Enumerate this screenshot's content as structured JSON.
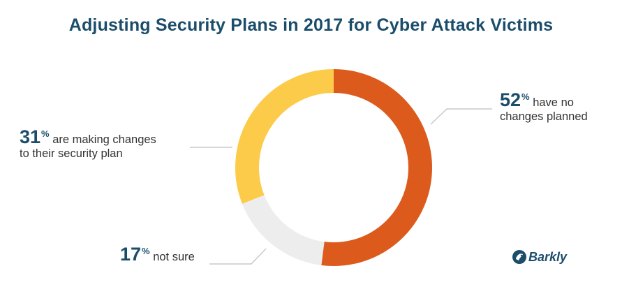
{
  "title": "Adjusting Security Plans in 2017 for Cyber Attack Victims",
  "brand": "Barkly",
  "colors": {
    "title": "#1b4d6b",
    "no_changes": "#dc5a1b",
    "not_sure": "#ededed",
    "making_changes": "#fdcb4a",
    "leader_line": "#bdbdbd"
  },
  "chart_data": {
    "type": "pie",
    "variant": "donut",
    "title": "Adjusting Security Plans in 2017 for Cyber Attack Victims",
    "slices": [
      {
        "label": "have no changes planned",
        "value": 52,
        "percent_text": "52",
        "color": "#dc5a1b"
      },
      {
        "label": "not sure",
        "value": 17,
        "percent_text": "17",
        "color": "#ededed"
      },
      {
        "label": "are making changes to their security plan",
        "value": 31,
        "percent_text": "31",
        "color": "#fdcb4a"
      }
    ],
    "legend": "none",
    "labels": {
      "no_changes": {
        "pct": "52",
        "sign": "%",
        "line1": "have no",
        "line2": "changes planned"
      },
      "making_changes": {
        "pct": "31",
        "sign": "%",
        "line1": "are making changes",
        "line2": "to their security plan"
      },
      "not_sure": {
        "pct": "17",
        "sign": "%",
        "line1": "not sure"
      }
    }
  }
}
